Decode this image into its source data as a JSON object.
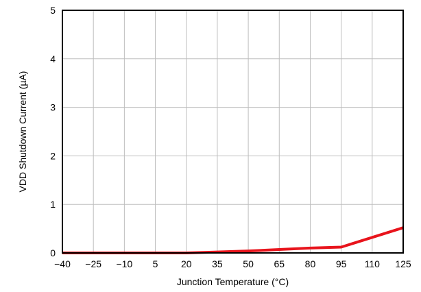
{
  "chart_data": {
    "type": "line",
    "xlabel": "Junction Temperature (°C)",
    "ylabel": "VDD Shutdown Current (µA)",
    "xlim": [
      -40,
      125
    ],
    "ylim": [
      0,
      5
    ],
    "x_ticks": [
      "−40",
      "−25",
      "−10",
      "5",
      "20",
      "35",
      "50",
      "65",
      "80",
      "95",
      "110",
      "125"
    ],
    "x_tick_values": [
      -40,
      -25,
      -10,
      5,
      20,
      35,
      50,
      65,
      80,
      95,
      110,
      125
    ],
    "y_ticks": [
      "0",
      "1",
      "2",
      "3",
      "4",
      "5"
    ],
    "y_tick_values": [
      0,
      1,
      2,
      3,
      4,
      5
    ],
    "grid": true,
    "series": [
      {
        "color": "#e8141c",
        "x": [
          -40,
          20,
          35,
          50,
          65,
          80,
          95,
          125
        ],
        "y": [
          0.0,
          0.0,
          0.02,
          0.04,
          0.07,
          0.1,
          0.12,
          0.52
        ]
      }
    ]
  }
}
